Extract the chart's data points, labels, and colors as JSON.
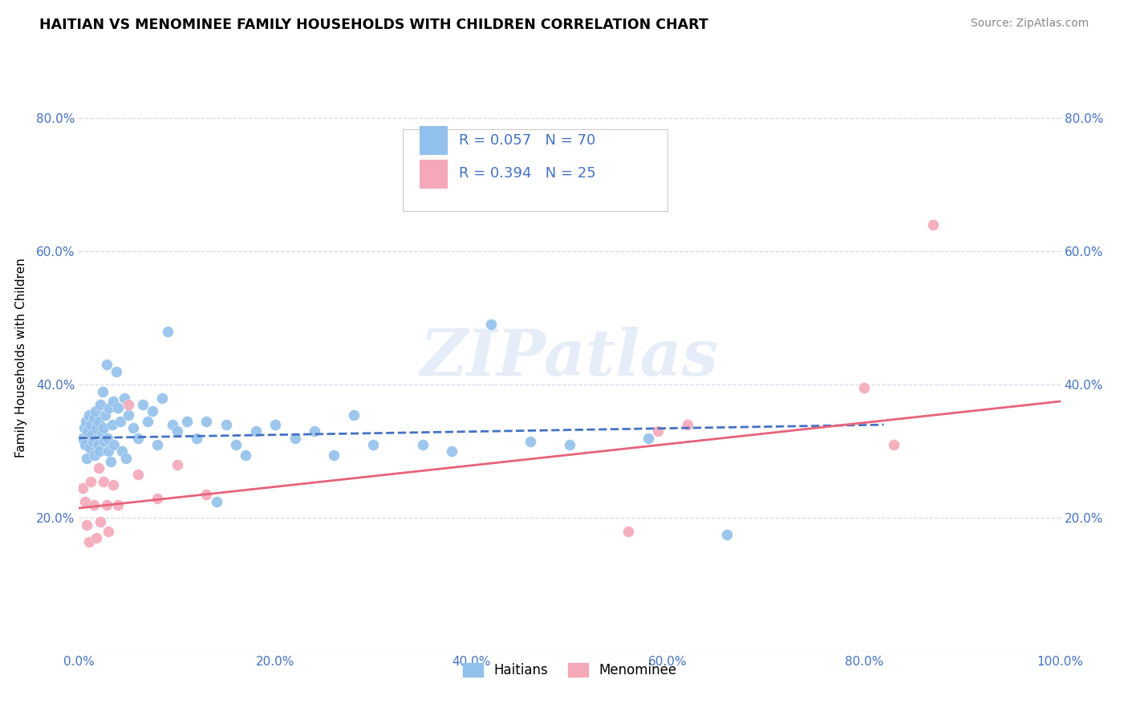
{
  "title": "HAITIAN VS MENOMINEE FAMILY HOUSEHOLDS WITH CHILDREN CORRELATION CHART",
  "source": "Source: ZipAtlas.com",
  "ylabel": "Family Households with Children",
  "xlim": [
    0.0,
    1.0
  ],
  "ylim": [
    0.0,
    0.88
  ],
  "xticks": [
    0.0,
    0.2,
    0.4,
    0.6,
    0.8,
    1.0
  ],
  "yticks": [
    0.2,
    0.4,
    0.6,
    0.8
  ],
  "xtick_labels": [
    "0.0%",
    "20.0%",
    "40.0%",
    "60.0%",
    "80.0%",
    "100.0%"
  ],
  "ytick_labels": [
    "20.0%",
    "40.0%",
    "60.0%",
    "80.0%"
  ],
  "background_color": "#ffffff",
  "grid_color": "#d8d8e8",
  "watermark_text": "ZIPatlas",
  "haitian_color": "#92C0EC",
  "menominee_color": "#F4A8B8",
  "haitian_line_color": "#4472C4",
  "menominee_line_color": "#E8637A",
  "haitian_R": 0.057,
  "haitian_N": 70,
  "menominee_R": 0.394,
  "menominee_N": 25,
  "legend_label_haitian": "Haitians",
  "legend_label_menominee": "Menominee",
  "haitian_x": [
    0.004,
    0.005,
    0.006,
    0.007,
    0.008,
    0.009,
    0.01,
    0.011,
    0.012,
    0.013,
    0.014,
    0.015,
    0.016,
    0.017,
    0.018,
    0.019,
    0.02,
    0.021,
    0.022,
    0.023,
    0.024,
    0.025,
    0.026,
    0.027,
    0.028,
    0.029,
    0.03,
    0.031,
    0.032,
    0.034,
    0.035,
    0.036,
    0.038,
    0.04,
    0.042,
    0.044,
    0.046,
    0.048,
    0.05,
    0.055,
    0.06,
    0.065,
    0.07,
    0.075,
    0.08,
    0.085,
    0.09,
    0.095,
    0.1,
    0.11,
    0.12,
    0.13,
    0.14,
    0.15,
    0.16,
    0.17,
    0.18,
    0.2,
    0.22,
    0.24,
    0.26,
    0.28,
    0.3,
    0.35,
    0.38,
    0.42,
    0.46,
    0.5,
    0.58,
    0.66
  ],
  "haitian_y": [
    0.32,
    0.335,
    0.31,
    0.345,
    0.29,
    0.33,
    0.355,
    0.305,
    0.34,
    0.325,
    0.315,
    0.35,
    0.295,
    0.36,
    0.335,
    0.31,
    0.345,
    0.3,
    0.37,
    0.325,
    0.39,
    0.335,
    0.315,
    0.355,
    0.43,
    0.32,
    0.3,
    0.365,
    0.285,
    0.34,
    0.375,
    0.31,
    0.42,
    0.365,
    0.345,
    0.3,
    0.38,
    0.29,
    0.355,
    0.335,
    0.32,
    0.37,
    0.345,
    0.36,
    0.31,
    0.38,
    0.48,
    0.34,
    0.33,
    0.345,
    0.32,
    0.345,
    0.225,
    0.34,
    0.31,
    0.295,
    0.33,
    0.34,
    0.32,
    0.33,
    0.295,
    0.355,
    0.31,
    0.31,
    0.3,
    0.49,
    0.315,
    0.31,
    0.32,
    0.175
  ],
  "menominee_x": [
    0.004,
    0.006,
    0.008,
    0.01,
    0.012,
    0.015,
    0.018,
    0.02,
    0.022,
    0.025,
    0.028,
    0.03,
    0.035,
    0.04,
    0.05,
    0.06,
    0.08,
    0.1,
    0.13,
    0.56,
    0.59,
    0.62,
    0.8,
    0.83,
    0.87
  ],
  "menominee_y": [
    0.245,
    0.225,
    0.19,
    0.165,
    0.255,
    0.22,
    0.17,
    0.275,
    0.195,
    0.255,
    0.22,
    0.18,
    0.25,
    0.22,
    0.37,
    0.265,
    0.23,
    0.28,
    0.235,
    0.18,
    0.33,
    0.34,
    0.395,
    0.31,
    0.64
  ],
  "haitian_line_x": [
    0.0,
    0.82
  ],
  "haitian_line_y": [
    0.32,
    0.34
  ],
  "menominee_line_x": [
    0.0,
    1.0
  ],
  "menominee_line_y": [
    0.215,
    0.375
  ]
}
